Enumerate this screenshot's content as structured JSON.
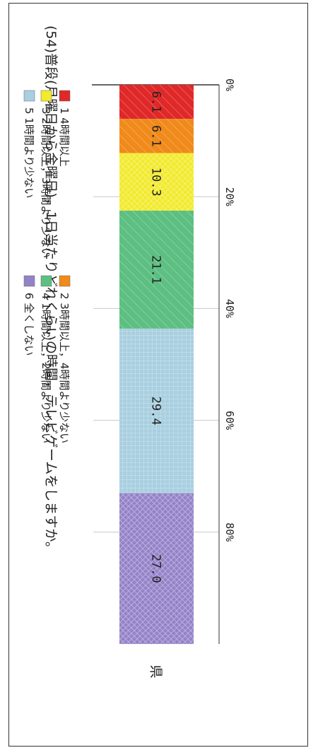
{
  "chart_data": {
    "type": "bar",
    "orientation": "horizontal-stacked",
    "title": "(54)普段(月曜日から金曜日)，1日当たりどれくらいの時間，テレビゲームをしますか。",
    "categories": [
      "県"
    ],
    "x_ticks": [
      "0%",
      "20%",
      "40%",
      "60%",
      "80%"
    ],
    "xlim": [
      0,
      100
    ],
    "grid": true,
    "series": [
      {
        "name": "1 4時間以上",
        "value": 6.1,
        "label": "6.1",
        "color": "#e02828"
      },
      {
        "name": "2 3時間以上，4時間より少ない",
        "value": 6.1,
        "label": "6.1",
        "color": "#f08a1a"
      },
      {
        "name": "3 2時間以上，3時間より少ない",
        "value": 10.3,
        "label": "10.3",
        "color": "#f2ea2a"
      },
      {
        "name": "4 1時間以上，2時間より少ない",
        "value": 21.1,
        "label": "21.1",
        "color": "#5dbf82"
      },
      {
        "name": "5 1時間より少ない",
        "value": 29.4,
        "label": "29.4",
        "color": "#a9cfe0"
      },
      {
        "name": "6 全くしない",
        "value": 27.0,
        "label": "27.0",
        "color": "#9482c8"
      }
    ],
    "legend_position": "bottom"
  }
}
